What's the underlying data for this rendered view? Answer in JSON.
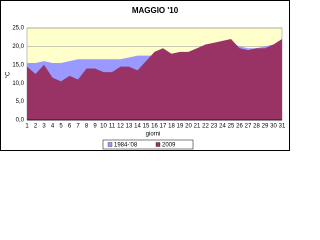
{
  "chart_data": {
    "type": "area",
    "title": "MAGGIO '10",
    "xlabel": "giorni",
    "ylabel": "°C",
    "categories": [
      "1",
      "2",
      "3",
      "4",
      "5",
      "6",
      "7",
      "8",
      "9",
      "10",
      "11",
      "12",
      "13",
      "14",
      "15",
      "16",
      "17",
      "18",
      "19",
      "20",
      "21",
      "22",
      "23",
      "24",
      "25",
      "26",
      "27",
      "28",
      "29",
      "30",
      "31"
    ],
    "series": [
      {
        "name": "1984-'08",
        "color": "#9999ff",
        "values": [
          15.5,
          15.5,
          16,
          15.5,
          15.5,
          16,
          16.5,
          16.5,
          16.5,
          16.5,
          16.5,
          16.5,
          17,
          17.5,
          17.5,
          17.5,
          18,
          18,
          18,
          18.5,
          19,
          19.5,
          20,
          20.5,
          21,
          20,
          19.5,
          19.5,
          20,
          20.5,
          21
        ]
      },
      {
        "name": "2009",
        "color": "#993366",
        "values": [
          14.5,
          12.5,
          15,
          11.5,
          10.5,
          12,
          11,
          14,
          14,
          13,
          13,
          14.5,
          14.5,
          13.5,
          16,
          18.5,
          19.5,
          18,
          18.5,
          18.5,
          19.5,
          20.5,
          21,
          21.5,
          22,
          19.5,
          19,
          19.5,
          19.5,
          20.5,
          22
        ]
      }
    ],
    "ylim": [
      0,
      25
    ],
    "yticks": [
      {
        "value": 0,
        "label": "0,0"
      },
      {
        "value": 5,
        "label": "5,0"
      },
      {
        "value": 10,
        "label": "10,0"
      },
      {
        "value": 15,
        "label": "15,0"
      },
      {
        "value": 20,
        "label": "20,0"
      },
      {
        "value": 25,
        "label": "25,0"
      }
    ],
    "grid": true,
    "legend": "bottom",
    "background": "#ffffcc"
  }
}
